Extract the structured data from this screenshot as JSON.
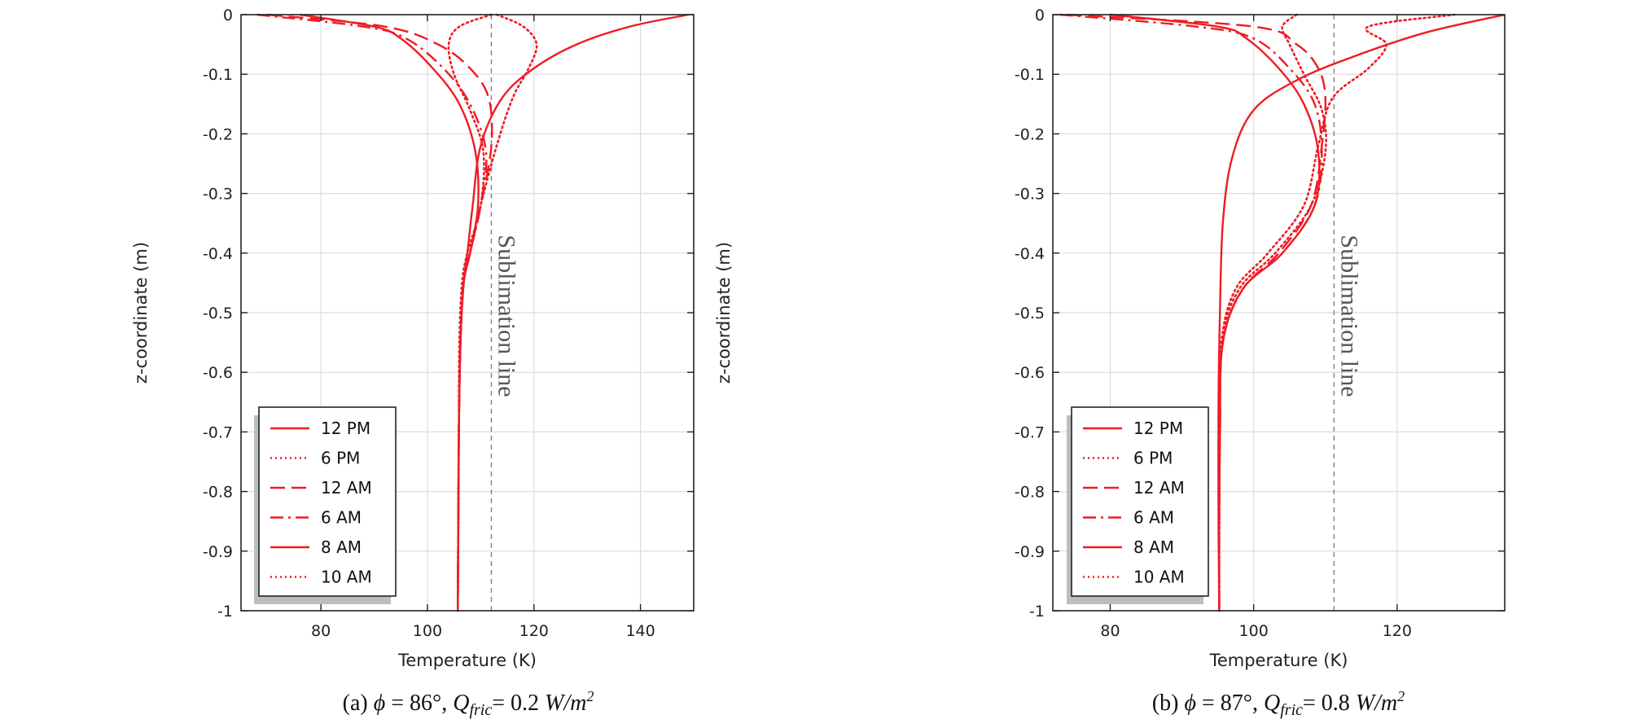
{
  "chart_data": [
    {
      "type": "line",
      "caption": {
        "prefix": "(a) ",
        "phi": "ϕ",
        "phi_value": " = 86°, ",
        "q": "Q",
        "q_sub": "fric",
        "q_value": "= 0.2 ",
        "unit": "W/m",
        "unit_sup": "2"
      },
      "xlabel": "Temperature (K)",
      "ylabel": "z-coordinate (m)",
      "xlim": [
        65,
        150
      ],
      "ylim": [
        -1.0,
        0.0
      ],
      "xticks": [
        80,
        100,
        120,
        140
      ],
      "yticks": [
        0,
        -0.1,
        -0.2,
        -0.3,
        -0.4,
        -0.5,
        -0.6,
        -0.7,
        -0.8,
        -0.9,
        -1
      ],
      "ytick_labels": [
        "0",
        "-0.1",
        "-0.2",
        "-0.3",
        "-0.4",
        "-0.5",
        "-0.6",
        "-0.7",
        "-0.8",
        "-0.9",
        "-1"
      ],
      "grid": true,
      "legend_placement": "bottom-left",
      "annotation": {
        "text": "Sublimation line",
        "x": 112
      },
      "series": [
        {
          "name": "12 PM",
          "style": "solid",
          "x": [
            149,
            138,
            128,
            120,
            114,
            110,
            108.5,
            107.5,
            106.8,
            106.2,
            105.9,
            105.8,
            105.7
          ],
          "y": [
            0,
            -0.02,
            -0.05,
            -0.09,
            -0.14,
            -0.22,
            -0.32,
            -0.4,
            -0.45,
            -0.55,
            -0.7,
            -0.85,
            -1.0
          ]
        },
        {
          "name": "6 PM",
          "style": "dotted",
          "x": [
            113,
            118,
            120.5,
            119,
            116,
            113,
            110,
            108,
            106.8,
            106.2,
            105.9,
            105.8,
            105.7
          ],
          "y": [
            0,
            -0.02,
            -0.05,
            -0.09,
            -0.14,
            -0.22,
            -0.32,
            -0.4,
            -0.45,
            -0.55,
            -0.7,
            -0.85,
            -1.0
          ]
        },
        {
          "name": "12 AM",
          "style": "dashed",
          "x": [
            70,
            92,
            102,
            108,
            111.5,
            112,
            110,
            108,
            106.8,
            106.2,
            105.9,
            105.8,
            105.7
          ],
          "y": [
            0,
            -0.02,
            -0.05,
            -0.09,
            -0.14,
            -0.22,
            -0.32,
            -0.4,
            -0.45,
            -0.55,
            -0.7,
            -0.85,
            -1.0
          ]
        },
        {
          "name": "6 AM",
          "style": "dashdot",
          "x": [
            68,
            88,
            96,
            103,
            108,
            111,
            110,
            108,
            106.8,
            106.2,
            105.9,
            105.8,
            105.7
          ],
          "y": [
            0,
            -0.02,
            -0.04,
            -0.09,
            -0.15,
            -0.23,
            -0.32,
            -0.4,
            -0.45,
            -0.55,
            -0.7,
            -0.85,
            -1.0
          ]
        },
        {
          "name": "8 AM",
          "style": "solid",
          "x": [
            76,
            90,
            95,
            101,
            106,
            109,
            109.5,
            108,
            106.8,
            106.2,
            105.9,
            105.8,
            105.7
          ],
          "y": [
            0,
            -0.02,
            -0.04,
            -0.09,
            -0.15,
            -0.23,
            -0.32,
            -0.4,
            -0.45,
            -0.55,
            -0.7,
            -0.85,
            -1.0
          ]
        },
        {
          "name": "10 AM",
          "style": "dotted",
          "x": [
            112,
            106,
            104,
            105,
            108,
            110.5,
            110,
            107.5,
            106.5,
            106,
            105.9,
            105.8,
            105.7
          ],
          "y": [
            0,
            -0.02,
            -0.05,
            -0.1,
            -0.16,
            -0.23,
            -0.32,
            -0.4,
            -0.45,
            -0.55,
            -0.7,
            -0.85,
            -1.0
          ]
        }
      ]
    },
    {
      "type": "line",
      "caption": {
        "prefix": "(b) ",
        "phi": "ϕ",
        "phi_value": " = 87°, ",
        "q": "Q",
        "q_sub": "fric",
        "q_value": "= 0.8 ",
        "unit": "W/m",
        "unit_sup": "2"
      },
      "xlabel": "Temperature (K)",
      "ylabel": "z-coordinate (m)",
      "xlim": [
        72,
        135
      ],
      "ylim": [
        -1.0,
        0.0
      ],
      "xticks": [
        80,
        100,
        120
      ],
      "yticks": [
        0,
        -0.1,
        -0.2,
        -0.3,
        -0.4,
        -0.5,
        -0.6,
        -0.7,
        -0.8,
        -0.9,
        -1
      ],
      "ytick_labels": [
        "0",
        "-0.1",
        "-0.2",
        "-0.3",
        "-0.4",
        "-0.5",
        "-0.6",
        "-0.7",
        "-0.8",
        "-0.9",
        "-1"
      ],
      "grid": true,
      "legend_placement": "bottom-left",
      "annotation": {
        "text": "Sublimation line",
        "x": 111.2
      },
      "series": [
        {
          "name": "12 PM",
          "style": "solid",
          "x": [
            135,
            124,
            114,
            106,
            100,
            97,
            95.7,
            95.3,
            95.1,
            95.1,
            95.2
          ],
          "y": [
            0,
            -0.03,
            -0.07,
            -0.11,
            -0.16,
            -0.24,
            -0.35,
            -0.5,
            -0.65,
            -0.85,
            -1.0
          ]
        },
        {
          "name": "6 PM",
          "style": "dotted",
          "x": [
            128,
            116,
            118.5,
            116,
            111,
            109,
            107,
            102,
            97.5,
            95.5,
            95.3,
            95.2,
            95.2
          ],
          "y": [
            0,
            -0.02,
            -0.05,
            -0.09,
            -0.14,
            -0.22,
            -0.32,
            -0.4,
            -0.46,
            -0.55,
            -0.7,
            -0.85,
            -1.0
          ]
        },
        {
          "name": "12 AM",
          "style": "dashed",
          "x": [
            74,
            100,
            106,
            109,
            110,
            109.5,
            108,
            103.5,
            98.5,
            95.7,
            95.3,
            95.2,
            95.2
          ],
          "y": [
            0,
            -0.02,
            -0.05,
            -0.09,
            -0.14,
            -0.22,
            -0.32,
            -0.4,
            -0.46,
            -0.55,
            -0.7,
            -0.85,
            -1.0
          ]
        },
        {
          "name": "6 AM",
          "style": "dashdot",
          "x": [
            73,
            92,
            100,
            105,
            108.5,
            109.5,
            108.5,
            104,
            98.5,
            95.7,
            95.3,
            95.2,
            95.2
          ],
          "y": [
            0,
            -0.02,
            -0.04,
            -0.09,
            -0.15,
            -0.23,
            -0.32,
            -0.4,
            -0.46,
            -0.55,
            -0.7,
            -0.85,
            -1.0
          ]
        },
        {
          "name": "8 AM",
          "style": "solid",
          "x": [
            80,
            95,
            99,
            103.5,
            107,
            109,
            108.5,
            104,
            98.5,
            95.7,
            95.3,
            95.2,
            95.2
          ],
          "y": [
            0,
            -0.02,
            -0.04,
            -0.09,
            -0.15,
            -0.23,
            -0.32,
            -0.4,
            -0.46,
            -0.55,
            -0.7,
            -0.85,
            -1.0
          ]
        },
        {
          "name": "10 AM",
          "style": "dotted",
          "x": [
            106,
            104,
            105,
            107,
            109.5,
            110,
            108,
            103,
            98,
            95.5,
            95.3,
            95.2,
            95.2
          ],
          "y": [
            0,
            -0.02,
            -0.05,
            -0.1,
            -0.16,
            -0.23,
            -0.32,
            -0.4,
            -0.46,
            -0.55,
            -0.7,
            -0.85,
            -1.0
          ]
        }
      ]
    }
  ]
}
